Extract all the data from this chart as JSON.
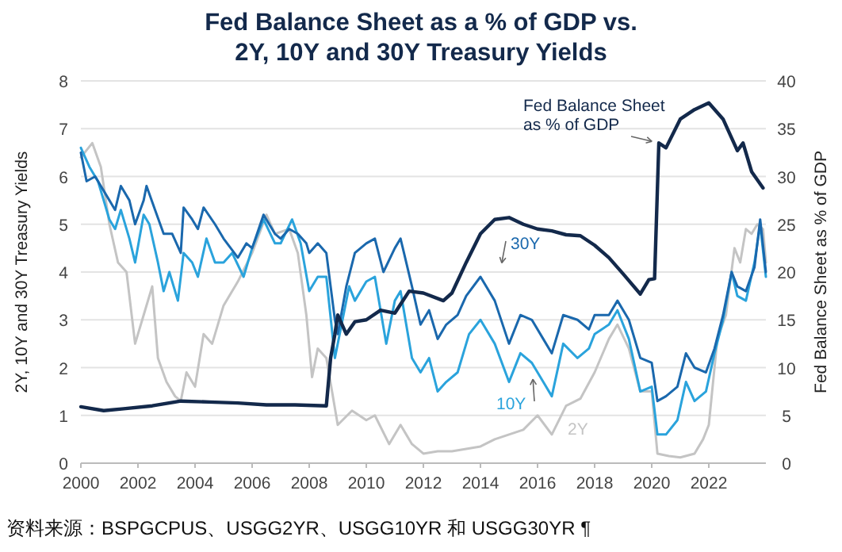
{
  "chart_data": {
    "type": "line",
    "title": "Fed Balance Sheet as a % of GDP vs.\n2Y, 10Y and 30Y Treasury Yields",
    "ylabel": "2Y, 10Y and 30Y Treasury Yields",
    "y2label": "Fed Balance Sheet as % of GDP",
    "xlim": [
      2000,
      2024
    ],
    "xticks": [
      2000,
      2002,
      2004,
      2006,
      2008,
      2010,
      2012,
      2014,
      2016,
      2018,
      2020,
      2022
    ],
    "ylim": [
      0,
      8
    ],
    "yticks": [
      0,
      1,
      2,
      3,
      4,
      5,
      6,
      7,
      8
    ],
    "y2lim": [
      0,
      40
    ],
    "y2ticks": [
      0,
      5,
      10,
      15,
      20,
      25,
      30,
      35,
      40
    ],
    "grid": "y",
    "legend": false,
    "marker": "none",
    "line_style": "solid",
    "annotations": [
      "资料来源：BSPGCPUS、USGG2YR、USGG10YR 和 USGG30YR ¶"
    ],
    "series": [
      {
        "name": "2Y",
        "color": "#c4c4c4",
        "x": [
          2000,
          2000.4,
          2000.7,
          2001,
          2001.3,
          2001.6,
          2001.9,
          2002.2,
          2002.5,
          2002.7,
          2003,
          2003.3,
          2003.5,
          2003.7,
          2004,
          2004.3,
          2004.6,
          2005,
          2005.5,
          2006,
          2006.5,
          2006.8,
          2007.3,
          2007.6,
          2007.9,
          2008.1,
          2008.3,
          2008.6,
          2008.8,
          2009,
          2009.5,
          2010,
          2010.3,
          2010.8,
          2011.2,
          2011.6,
          2012,
          2012.5,
          2013,
          2013.5,
          2014,
          2014.5,
          2015,
          2015.5,
          2016,
          2016.5,
          2017,
          2017.5,
          2018,
          2018.5,
          2018.8,
          2019.2,
          2019.6,
          2020,
          2020.2,
          2020.6,
          2021,
          2021.5,
          2021.8,
          2022,
          2022.3,
          2022.6,
          2022.9,
          2023.1,
          2023.3,
          2023.5,
          2023.7,
          2023.9,
          2024
        ],
        "values": [
          6.4,
          6.7,
          6.2,
          5.0,
          4.2,
          4.0,
          2.5,
          3.1,
          3.7,
          2.2,
          1.7,
          1.4,
          1.3,
          1.9,
          1.6,
          2.7,
          2.5,
          3.3,
          3.8,
          4.4,
          5.2,
          4.8,
          4.9,
          4.4,
          3.1,
          1.8,
          2.4,
          2.2,
          1.5,
          0.8,
          1.1,
          0.9,
          1.0,
          0.4,
          0.8,
          0.4,
          0.2,
          0.25,
          0.25,
          0.3,
          0.35,
          0.5,
          0.6,
          0.7,
          1.0,
          0.6,
          1.2,
          1.35,
          1.9,
          2.6,
          2.9,
          2.4,
          1.5,
          1.5,
          0.2,
          0.15,
          0.12,
          0.2,
          0.5,
          0.8,
          2.6,
          3.1,
          4.5,
          4.2,
          4.9,
          4.8,
          5.0,
          4.9,
          4.2
        ]
      },
      {
        "name": "10Y",
        "color": "#2aa3dc",
        "x": [
          2000,
          2000.3,
          2000.6,
          2001,
          2001.2,
          2001.4,
          2001.7,
          2001.9,
          2002.2,
          2002.4,
          2002.7,
          2002.9,
          2003.1,
          2003.4,
          2003.6,
          2003.9,
          2004.1,
          2004.4,
          2004.7,
          2005,
          2005.3,
          2005.7,
          2006,
          2006.4,
          2006.8,
          2007,
          2007.4,
          2007.7,
          2008,
          2008.3,
          2008.6,
          2008.9,
          2009,
          2009.4,
          2009.6,
          2010,
          2010.3,
          2010.7,
          2011,
          2011.2,
          2011.6,
          2011.9,
          2012.2,
          2012.5,
          2012.8,
          2013.2,
          2013.6,
          2014,
          2014.5,
          2015,
          2015.4,
          2015.8,
          2016.2,
          2016.5,
          2016.9,
          2017.4,
          2017.8,
          2018,
          2018.5,
          2018.8,
          2019.2,
          2019.6,
          2020,
          2020.2,
          2020.5,
          2020.9,
          2021.2,
          2021.5,
          2021.9,
          2022.2,
          2022.5,
          2022.8,
          2023,
          2023.3,
          2023.6,
          2023.8,
          2024
        ],
        "values": [
          6.6,
          6.2,
          5.9,
          5.1,
          4.9,
          5.3,
          4.7,
          4.2,
          5.2,
          5.0,
          4.2,
          3.6,
          4.0,
          3.4,
          4.4,
          4.2,
          3.9,
          4.7,
          4.2,
          4.2,
          4.4,
          3.9,
          4.5,
          5.1,
          4.6,
          4.6,
          5.1,
          4.6,
          3.6,
          3.9,
          3.9,
          2.2,
          2.5,
          3.7,
          3.4,
          3.8,
          3.9,
          2.5,
          3.4,
          3.6,
          2.2,
          1.9,
          2.2,
          1.5,
          1.7,
          1.9,
          2.7,
          3.0,
          2.5,
          1.7,
          2.3,
          2.1,
          1.7,
          1.4,
          2.5,
          2.2,
          2.4,
          2.7,
          2.9,
          3.2,
          2.6,
          1.5,
          1.6,
          0.6,
          0.6,
          0.9,
          1.7,
          1.3,
          1.5,
          2.3,
          3.0,
          4.0,
          3.5,
          3.4,
          4.2,
          5.0,
          3.9
        ]
      },
      {
        "name": "30Y",
        "color": "#1a68ad",
        "x": [
          2000,
          2000.2,
          2000.5,
          2001,
          2001.2,
          2001.4,
          2001.7,
          2001.9,
          2002.2,
          2002.3,
          2002.6,
          2002.9,
          2003.2,
          2003.5,
          2003.6,
          2003.9,
          2004.1,
          2004.3,
          2004.7,
          2005,
          2005.5,
          2005.8,
          2006,
          2006.4,
          2006.8,
          2007,
          2007.3,
          2007.6,
          2007.9,
          2008,
          2008.3,
          2008.6,
          2008.9,
          2009,
          2009.3,
          2009.6,
          2010,
          2010.3,
          2010.6,
          2011,
          2011.2,
          2011.6,
          2011.9,
          2012.2,
          2012.5,
          2012.8,
          2013.2,
          2013.5,
          2014,
          2014.5,
          2015,
          2015.4,
          2015.8,
          2016.2,
          2016.5,
          2016.9,
          2017.4,
          2017.8,
          2018,
          2018.5,
          2018.8,
          2019.2,
          2019.6,
          2020,
          2020.2,
          2020.5,
          2020.9,
          2021.2,
          2021.5,
          2021.9,
          2022.2,
          2022.5,
          2022.8,
          2023,
          2023.3,
          2023.6,
          2023.8,
          2024
        ],
        "values": [
          6.5,
          5.9,
          6.0,
          5.5,
          5.3,
          5.8,
          5.5,
          5.0,
          5.5,
          5.8,
          5.3,
          4.8,
          4.8,
          4.4,
          5.35,
          5.1,
          4.9,
          5.35,
          5.0,
          4.7,
          4.3,
          4.6,
          4.5,
          5.2,
          4.8,
          4.7,
          4.9,
          4.8,
          4.6,
          4.4,
          4.6,
          4.4,
          3.0,
          2.7,
          3.7,
          4.4,
          4.6,
          4.7,
          4.0,
          4.5,
          4.7,
          3.7,
          2.9,
          3.2,
          2.6,
          2.9,
          3.1,
          3.5,
          3.9,
          3.4,
          2.5,
          3.1,
          3.0,
          2.6,
          2.3,
          3.1,
          3.0,
          2.8,
          3.1,
          3.1,
          3.4,
          3.0,
          2.2,
          2.1,
          1.3,
          1.4,
          1.6,
          2.3,
          2.0,
          1.9,
          2.4,
          3.1,
          4.0,
          3.7,
          3.6,
          4.1,
          5.1,
          4.0
        ]
      },
      {
        "name": "Fed Balance Sheet\nas % of GDP",
        "color": "#13294b",
        "axis": "y2",
        "x": [
          2000,
          2000.8,
          2001.5,
          2002.5,
          2003.5,
          2004.5,
          2005.5,
          2006.5,
          2007.5,
          2008.6,
          2008.75,
          2008.9,
          2009,
          2009.3,
          2009.6,
          2010,
          2010.5,
          2011,
          2011.5,
          2012,
          2012.7,
          2013,
          2013.5,
          2014,
          2014.5,
          2015,
          2015.5,
          2016,
          2016.5,
          2017,
          2017.5,
          2018,
          2018.5,
          2019,
          2019.6,
          2019.9,
          2020.1,
          2020.25,
          2020.5,
          2021,
          2021.5,
          2022,
          2022.5,
          2023,
          2023.2,
          2023.5,
          2023.9
        ],
        "values": [
          5.9,
          5.5,
          5.7,
          6.0,
          6.5,
          6.4,
          6.3,
          6.1,
          6.1,
          6.0,
          11,
          13.5,
          15.5,
          13.5,
          14.8,
          15.0,
          16.0,
          15.7,
          18.0,
          17.8,
          17.0,
          17.8,
          21,
          24,
          25.5,
          25.7,
          25.0,
          24.5,
          24.3,
          23.9,
          23.8,
          22.8,
          21.5,
          19.8,
          17.7,
          19.2,
          19.3,
          33.5,
          33.0,
          36.0,
          37.0,
          37.7,
          36.0,
          32.7,
          33.5,
          30.5,
          28.8
        ]
      }
    ]
  }
}
